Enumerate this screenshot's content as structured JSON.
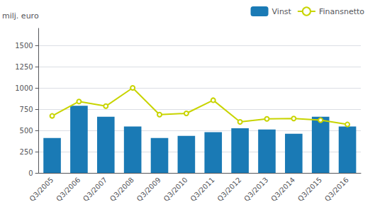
{
  "chart_data": {
    "type": "bar",
    "ylabel": "milj. euro",
    "categories": [
      "Q3/2005",
      "Q3/2006",
      "Q3/2007",
      "Q3/2008",
      "Q3/2009",
      "Q3/2010",
      "Q3/2011",
      "Q3/2012",
      "Q3/2013",
      "Q3/2014",
      "Q3/2015",
      "Q3/2016"
    ],
    "series": [
      {
        "name": "Vinst",
        "type": "bar",
        "color": "#1a7ab5",
        "values": [
          410,
          790,
          660,
          545,
          410,
          435,
          480,
          525,
          510,
          460,
          660,
          545
        ]
      },
      {
        "name": "Finansnetto",
        "type": "line",
        "color": "#c8d400",
        "values": [
          670,
          840,
          785,
          1000,
          685,
          700,
          855,
          600,
          635,
          640,
          620,
          570
        ]
      }
    ],
    "ylim": [
      0,
      1700
    ],
    "yticks": [
      0,
      250,
      500,
      750,
      1000,
      1250,
      1500
    ],
    "grid": true,
    "legend": "upper right"
  }
}
